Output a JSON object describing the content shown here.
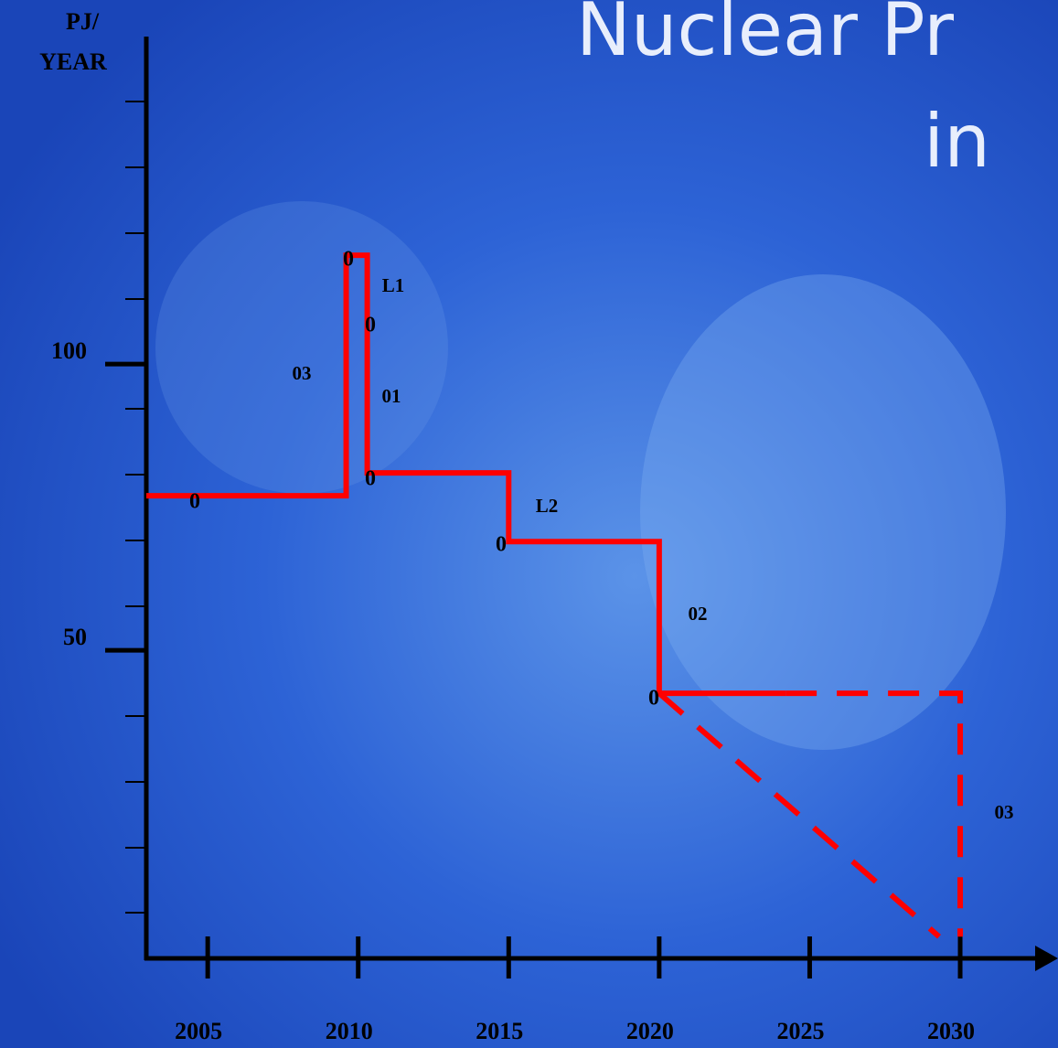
{
  "chart_data": {
    "type": "line",
    "title_lines": [
      "Nuclear Pr",
      "in"
    ],
    "y_label_lines": [
      "PJ/",
      "YEAR"
    ],
    "xlim": [
      2002.96,
      2033.25
    ],
    "ylim": [
      -3.8,
      157.2
    ],
    "xticks": [
      2005,
      2010,
      2015,
      2020,
      2025,
      2030
    ],
    "yticks": [
      50,
      100
    ],
    "series": [
      {
        "color": "#ff0000",
        "dash": false,
        "x": [
          2002.96,
          2009.6,
          2009.6,
          2010.3,
          2010.3,
          2015,
          2015,
          2020,
          2020,
          2024.2
        ],
        "values": [
          77,
          77,
          119,
          119,
          81,
          81,
          69,
          69,
          42.5,
          42.5
        ]
      },
      {
        "color": "#ff0000",
        "dash": true,
        "x": [
          2024.2,
          2030,
          2030
        ],
        "values": [
          42.5,
          42.5,
          0
        ]
      },
      {
        "color": "#ff0000",
        "dash": true,
        "x": [
          2020,
          2029.3
        ],
        "values": [
          42.5,
          0
        ]
      }
    ],
    "annotations": [
      "0",
      "0",
      "0",
      "0",
      "0",
      "0",
      "L1",
      "03",
      "01",
      "L2",
      "02",
      "03"
    ]
  }
}
